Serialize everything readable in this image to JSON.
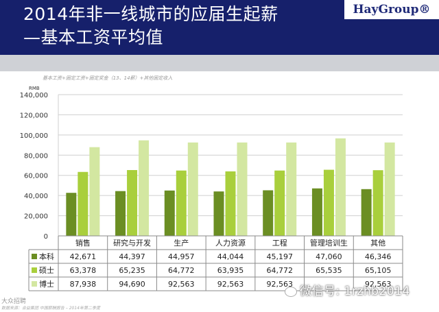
{
  "header": {
    "title_line1": "2014年非一线城市的应届生起薪",
    "title_line2": "—基本工资平均值",
    "logo": "HayGroup®"
  },
  "note": "基本工资+固定工资+固定奖金（13、14薪）+其他固定收入",
  "watermark": {
    "wechat": "微信号: 1rzhb2014",
    "corner": "大众招聘",
    "source": "数据来源：合益集团 中国薪酬报告 – 2014年第二季度"
  },
  "chart_data": {
    "type": "bar",
    "ylabel": "RMB",
    "ylim": [
      0,
      140000
    ],
    "yticks": [
      "0",
      "20,000",
      "40,000",
      "60,000",
      "80,000",
      "100,000",
      "120,000",
      "140,000"
    ],
    "categories": [
      "销售",
      "研究与开发",
      "生产",
      "人力资源",
      "工程",
      "管理培训生",
      "其他"
    ],
    "series": [
      {
        "name": "本科",
        "color": "#6b8e23",
        "values": [
          42671,
          44397,
          44957,
          44044,
          45197,
          47060,
          46346
        ],
        "labels": [
          "42,671",
          "44,397",
          "44,957",
          "44,044",
          "45,197",
          "47,060",
          "46,346"
        ]
      },
      {
        "name": "硕士",
        "color": "#a9cf3c",
        "values": [
          63378,
          65235,
          64772,
          63935,
          64772,
          65535,
          65105
        ],
        "labels": [
          "63,378",
          "65,235",
          "64,772",
          "63,935",
          "64,772",
          "65,535",
          "65,105"
        ]
      },
      {
        "name": "博士",
        "color": "#d3e7a1",
        "values": [
          87938,
          94690,
          92563,
          92563,
          92563,
          96655,
          92563
        ],
        "labels": [
          "87,938",
          "94,690",
          "92,563",
          "92,563",
          "92,563",
          "",
          "92,563"
        ]
      }
    ]
  }
}
